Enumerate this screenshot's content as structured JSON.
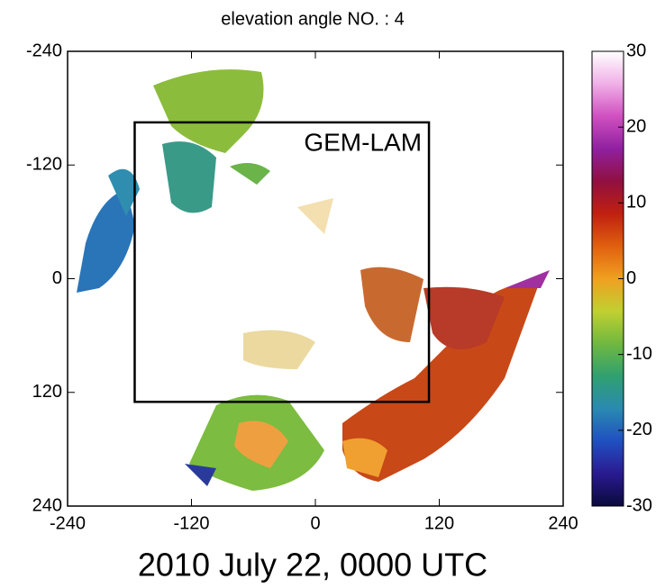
{
  "chart_data": {
    "type": "radar-map",
    "title": "elevation angle NO. : 4",
    "caption": "2010 July 22, 0000 UTC",
    "xlim": [
      -240,
      240
    ],
    "xticks": [
      -240,
      -120,
      0,
      120,
      240
    ],
    "ylim": [
      240,
      -240
    ],
    "yticks": [
      -240,
      -120,
      0,
      120,
      240
    ],
    "clim": [
      -30,
      30
    ],
    "cticks": [
      -30,
      -20,
      -10,
      0,
      10,
      20,
      30
    ],
    "colormap": [
      "#0a0a3c",
      "#2a1a90",
      "#2050c0",
      "#2a8ab0",
      "#30a070",
      "#70b840",
      "#c0d030",
      "#f0a020",
      "#e06010",
      "#c02010",
      "#901040",
      "#9020a0",
      "#d050c0",
      "#f0b0e8",
      "#ffffff"
    ],
    "domain_box": {
      "label": "GEM-LAM",
      "xlim": [
        -175,
        110
      ],
      "ylim": [
        -165,
        130
      ]
    }
  }
}
